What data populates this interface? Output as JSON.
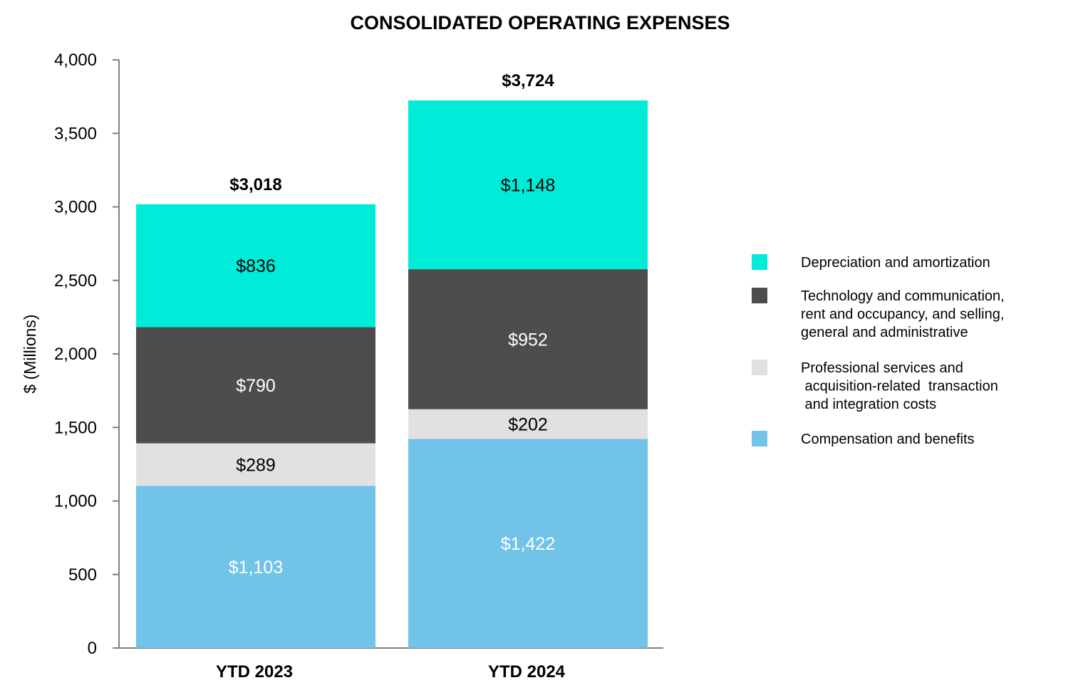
{
  "chart_data": {
    "type": "bar",
    "stacked": true,
    "title": "CONSOLIDATED OPERATING EXPENSES",
    "xlabel": "",
    "ylabel": "$ (Millions)",
    "ylim": [
      0,
      4000
    ],
    "yticks": [
      0,
      500,
      1000,
      1500,
      2000,
      2500,
      3000,
      3500,
      4000
    ],
    "ytick_labels": [
      "0",
      "500",
      "1,000",
      "1,500",
      "2,000",
      "2,500",
      "3,000",
      "3,500",
      "4,000"
    ],
    "categories": [
      "YTD 2023",
      "YTD 2024"
    ],
    "totals": [
      3018,
      3724
    ],
    "total_labels": [
      "$3,018",
      "$3,724"
    ],
    "grid": false,
    "legend_position": "right",
    "series": [
      {
        "name": "Compensation and benefits",
        "legend_lines": [
          "Compensation and benefits"
        ],
        "color": "#71C3E8",
        "label_color": "#FFFFFF",
        "values": [
          1103,
          1422
        ],
        "labels": [
          "$1,103",
          "$1,422"
        ]
      },
      {
        "name": "Professional services and acquisition-related transaction and integration costs",
        "legend_lines": [
          "Professional services and",
          " acquisition-related  transaction",
          " and integration costs"
        ],
        "color": "#E1E1E1",
        "label_color": "#000000",
        "values": [
          289,
          202
        ],
        "labels": [
          "$289",
          "$202"
        ]
      },
      {
        "name": "Technology and communication, rent and occupancy, and selling, general and administrative",
        "legend_lines": [
          "Technology and communication,",
          "rent and occupancy, and selling,",
          "general and administrative"
        ],
        "color": "#4D4D4D",
        "label_color": "#FFFFFF",
        "values": [
          790,
          952
        ],
        "labels": [
          "$790",
          "$952"
        ]
      },
      {
        "name": "Depreciation and amortization",
        "legend_lines": [
          "Depreciation and amortization"
        ],
        "color": "#00EBD8",
        "label_color": "#000000",
        "values": [
          836,
          1148
        ],
        "labels": [
          "$836",
          "$1,148"
        ]
      }
    ]
  }
}
